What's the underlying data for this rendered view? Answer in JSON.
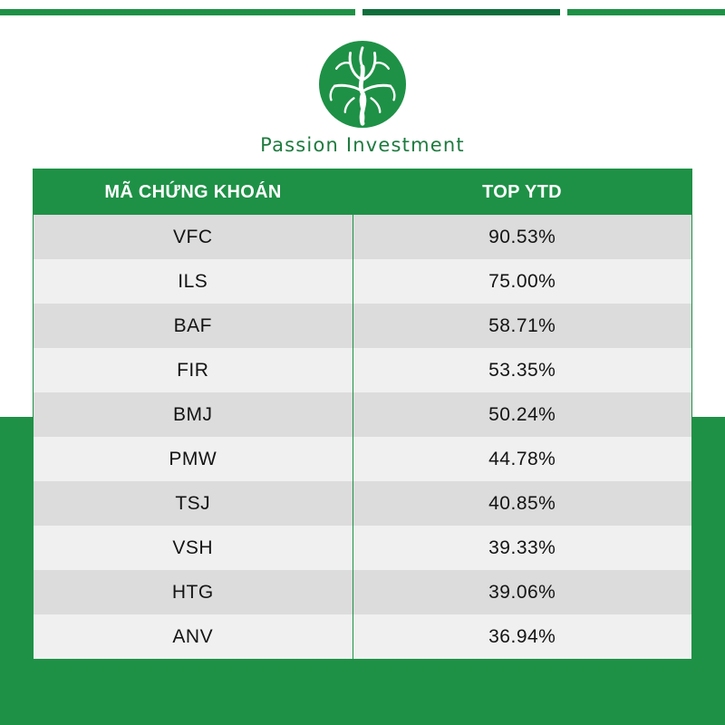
{
  "brand": {
    "name": "Passion Investment",
    "color": "#1e9146"
  },
  "table": {
    "headers": {
      "code": "MÃ CHỨNG KHOÁN",
      "ytd": "TOP YTD"
    },
    "rows": [
      {
        "code": "VFC",
        "ytd": "90.53%"
      },
      {
        "code": "ILS",
        "ytd": "75.00%"
      },
      {
        "code": "BAF",
        "ytd": "58.71%"
      },
      {
        "code": "FIR",
        "ytd": "53.35%"
      },
      {
        "code": "BMJ",
        "ytd": "50.24%"
      },
      {
        "code": "PMW",
        "ytd": "44.78%"
      },
      {
        "code": "TSJ",
        "ytd": "40.85%"
      },
      {
        "code": "VSH",
        "ytd": "39.33%"
      },
      {
        "code": "HTG",
        "ytd": "39.06%"
      },
      {
        "code": "ANV",
        "ytd": "36.94%"
      }
    ]
  }
}
